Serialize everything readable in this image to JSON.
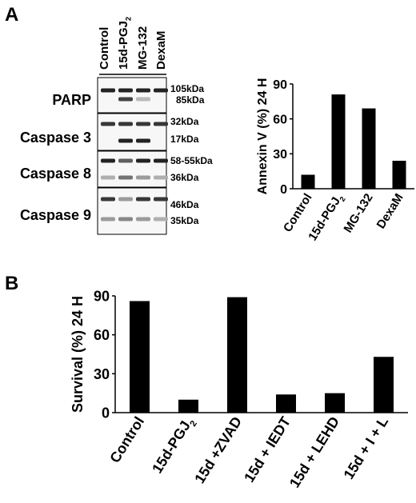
{
  "panels": {
    "a_letter": "A",
    "b_letter": "B"
  },
  "blot": {
    "lanes": [
      "Control",
      "15d-PGJ",
      "MG-132",
      "DexaM"
    ],
    "lane_subscript": "2",
    "rows": [
      {
        "protein": "PARP",
        "markers": [
          "105kDa",
          "85kDa"
        ],
        "bands": [
          [
            1,
            1,
            1,
            1
          ],
          [
            0,
            0.85,
            0.25,
            0
          ]
        ]
      },
      {
        "protein": "Caspase 3",
        "markers": [
          "32kDa",
          "17kDa"
        ],
        "bands": [
          [
            0.9,
            0.9,
            0.9,
            0.9
          ],
          [
            0,
            1,
            1,
            0
          ]
        ]
      },
      {
        "protein": "Caspase 8",
        "markers": [
          "58-55kDa",
          "36kDa"
        ],
        "bands": [
          [
            1,
            0.7,
            1,
            1
          ],
          [
            0.3,
            0.6,
            0.4,
            0.3
          ]
        ]
      },
      {
        "protein": "Caspase 9",
        "markers": [
          "46kDa",
          "35kDa"
        ],
        "bands": [
          [
            0.9,
            0.4,
            0.9,
            0.9
          ],
          [
            0.4,
            0.5,
            0.4,
            0.3
          ]
        ]
      }
    ]
  },
  "chart_data": [
    {
      "type": "bar",
      "panel": "A",
      "categories": [
        "Control",
        "15d-PGJ",
        "MG-132",
        "DexaM"
      ],
      "category_subscripts": [
        "",
        "2",
        "",
        ""
      ],
      "values": [
        12,
        81,
        69,
        24
      ],
      "ylabel": "Annexin V (%) 24 H",
      "ylim": [
        0,
        90
      ],
      "yticks": [
        0,
        30,
        60,
        90
      ],
      "bar_color": "#000000"
    },
    {
      "type": "bar",
      "panel": "B",
      "categories": [
        "Control",
        "15d-PGJ",
        "15d +ZVAD",
        "15d + IEDT",
        "15d + LEHD",
        "15d + I + L"
      ],
      "category_subscripts": [
        "",
        "2",
        "",
        "",
        "",
        ""
      ],
      "values": [
        86,
        10,
        89,
        14,
        15,
        43
      ],
      "ylabel": "Survival (%) 24 H",
      "ylim": [
        0,
        90
      ],
      "yticks": [
        0,
        30,
        60,
        90
      ],
      "bar_color": "#000000"
    }
  ]
}
